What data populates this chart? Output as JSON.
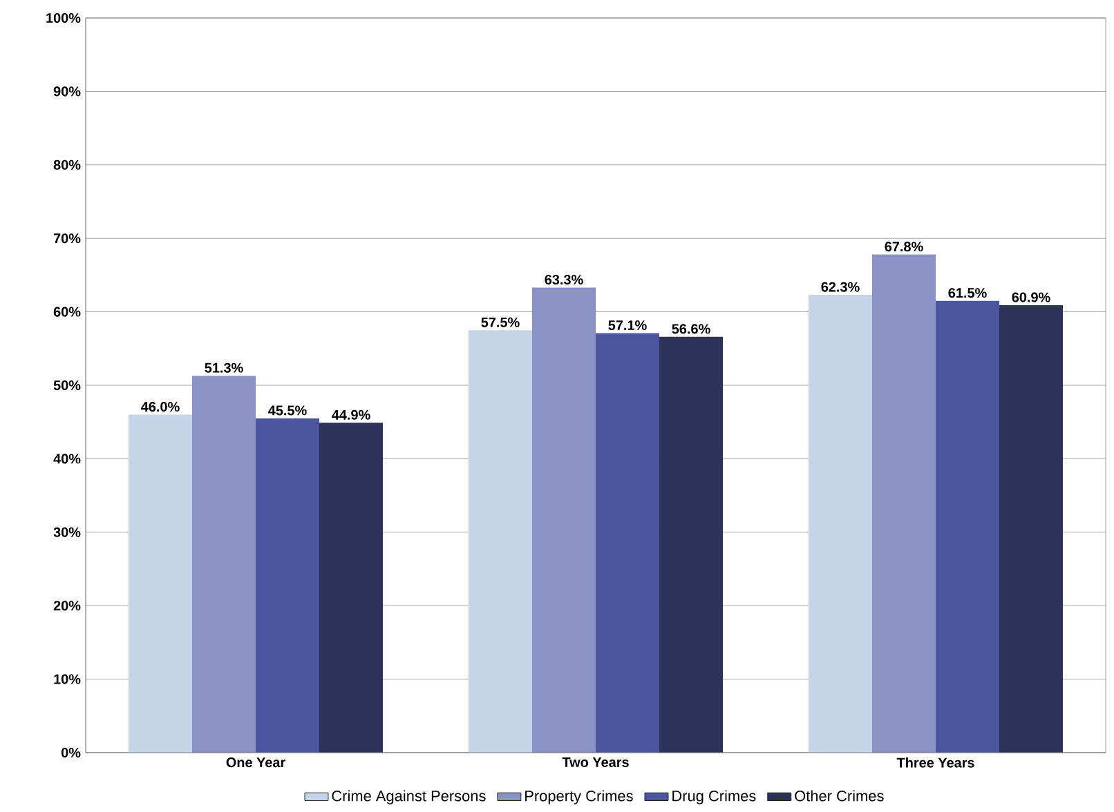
{
  "chart_data": {
    "type": "bar",
    "categories": [
      "One Year",
      "Two Years",
      "Three Years"
    ],
    "series": [
      {
        "name": "Crime Against Persons",
        "color": "#c6d4e8",
        "values": [
          46.0,
          57.5,
          62.3
        ],
        "value_labels": [
          "46.0%",
          "57.5%",
          "62.3%"
        ]
      },
      {
        "name": "Property Crimes",
        "color": "#8a92c6",
        "values": [
          51.3,
          63.3,
          67.8
        ],
        "value_labels": [
          "51.3%",
          "63.3%",
          "67.8%"
        ]
      },
      {
        "name": "Drug Crimes",
        "color": "#4b569f",
        "values": [
          45.5,
          57.1,
          61.5
        ],
        "value_labels": [
          "45.5%",
          "57.1%",
          "61.5%"
        ]
      },
      {
        "name": "Other Crimes",
        "color": "#2c3259",
        "values": [
          44.9,
          56.6,
          60.9
        ],
        "value_labels": [
          "44.9%",
          "56.6%",
          "60.9%"
        ]
      }
    ],
    "ylim": [
      0,
      100
    ],
    "yticks": [
      {
        "value": 0,
        "label": "0%"
      },
      {
        "value": 10,
        "label": "10%"
      },
      {
        "value": 20,
        "label": "20%"
      },
      {
        "value": 30,
        "label": "30%"
      },
      {
        "value": 40,
        "label": "40%"
      },
      {
        "value": 50,
        "label": "50%"
      },
      {
        "value": 60,
        "label": "60%"
      },
      {
        "value": 70,
        "label": "70%"
      },
      {
        "value": 80,
        "label": "80%"
      },
      {
        "value": 90,
        "label": "90%"
      },
      {
        "value": 100,
        "label": "100%"
      }
    ],
    "grid": "y",
    "legend": "bottom"
  }
}
